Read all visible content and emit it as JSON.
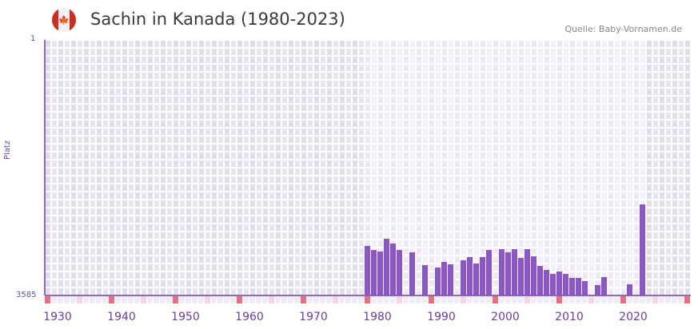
{
  "header": {
    "title": "Sachin in Kanada (1980-2023)",
    "source": "Quelle: Baby-Vornamen.de",
    "flag_icon": "canada-flag-icon"
  },
  "chart_data": {
    "type": "bar",
    "title": "Sachin in Kanada (1980-2023)",
    "ylabel": "Platz",
    "xlabel": "",
    "ylim": [
      3585,
      1
    ],
    "y_ticks": [
      "1",
      "3585"
    ],
    "xlim": [
      1928,
      2028
    ],
    "x_ticks": [
      1930,
      1940,
      1950,
      1960,
      1970,
      1980,
      1990,
      2000,
      2010,
      2020
    ],
    "highlight_range": [
      1978,
      2021
    ],
    "bar_color": "#8b55c8",
    "x": [
      1978,
      1979,
      1980,
      1981,
      1982,
      1983,
      1985,
      1987,
      1989,
      1990,
      1991,
      1993,
      1994,
      1995,
      1996,
      1997,
      1999,
      2000,
      2001,
      2002,
      2003,
      2004,
      2005,
      2006,
      2007,
      2008,
      2009,
      2010,
      2011,
      2012,
      2014,
      2015,
      2019,
      2021
    ],
    "values": [
      2891,
      2947,
      2969,
      2790,
      2857,
      2947,
      2980,
      3159,
      3193,
      3115,
      3148,
      3092,
      3047,
      3137,
      3047,
      2947,
      2935,
      2980,
      2935,
      3059,
      2935,
      3036,
      3171,
      3227,
      3283,
      3249,
      3283,
      3339,
      3339,
      3383,
      3439,
      3327,
      3428,
      2308
    ]
  }
}
